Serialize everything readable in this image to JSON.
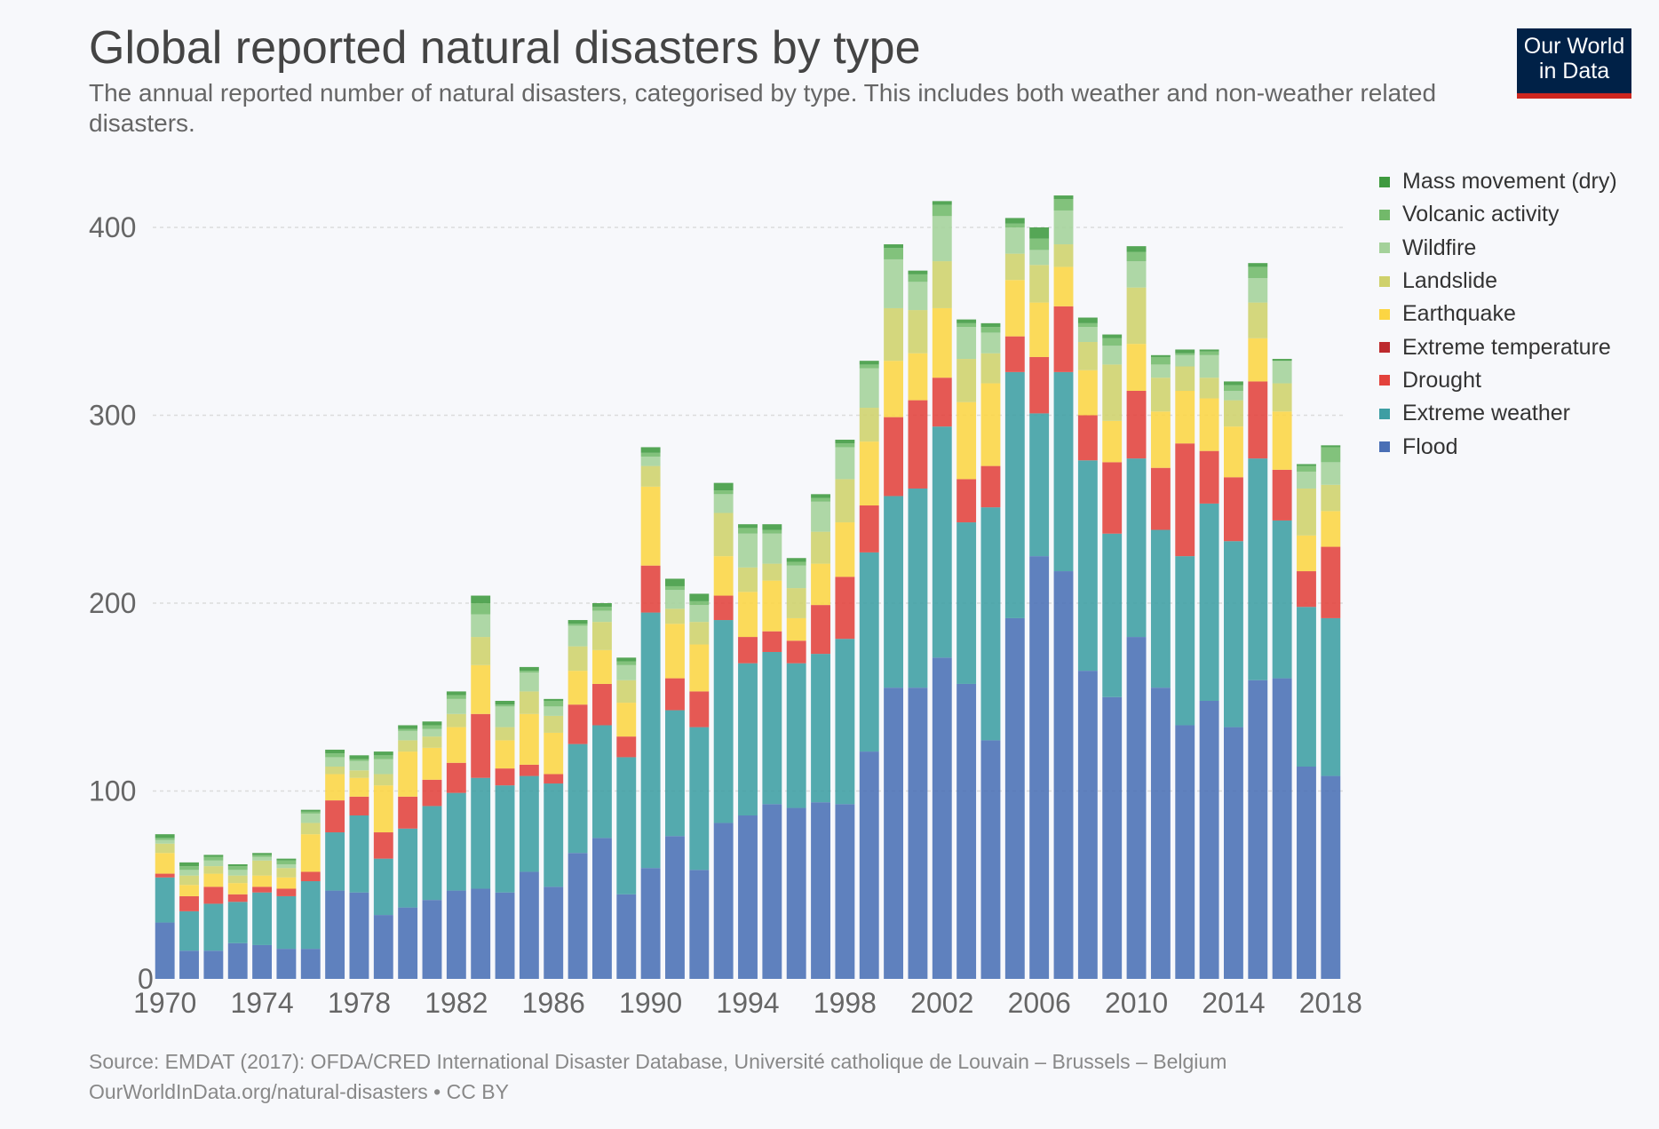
{
  "header": {
    "title": "Global reported natural disasters by type",
    "subtitle": "The annual reported number of natural disasters, categorised by type. This includes both weather and non-weather related disasters."
  },
  "logo": {
    "line1": "Our World",
    "line2": "in Data"
  },
  "footer": {
    "source": "Source: EMDAT (2017): OFDA/CRED International Disaster Database, Université catholique de Louvain – Brussels – Belgium",
    "license": "OurWorldInData.org/natural-disasters • CC BY"
  },
  "chart_data": {
    "type": "bar",
    "stacked": true,
    "x": [
      1970,
      1971,
      1972,
      1973,
      1974,
      1975,
      1976,
      1977,
      1978,
      1979,
      1980,
      1981,
      1982,
      1983,
      1984,
      1985,
      1986,
      1987,
      1988,
      1989,
      1990,
      1991,
      1992,
      1993,
      1994,
      1995,
      1996,
      1997,
      1998,
      1999,
      2000,
      2001,
      2002,
      2003,
      2004,
      2005,
      2006,
      2007,
      2008,
      2009,
      2010,
      2011,
      2012,
      2013,
      2014,
      2015,
      2016,
      2017,
      2018
    ],
    "x_ticks": [
      "1970",
      "1974",
      "1978",
      "1982",
      "1986",
      "1990",
      "1994",
      "1998",
      "2002",
      "2006",
      "2010",
      "2014",
      "2018"
    ],
    "y_ticks": [
      "0",
      "100",
      "200",
      "300",
      "400"
    ],
    "ylim": [
      0,
      430
    ],
    "grid": "horizontal dashed",
    "legend_position": "right",
    "series": [
      {
        "name": "Flood",
        "color": "#4a6fb5",
        "values": [
          30,
          15,
          15,
          19,
          18,
          16,
          16,
          47,
          46,
          34,
          38,
          42,
          47,
          48,
          46,
          57,
          49,
          67,
          75,
          45,
          59,
          76,
          58,
          83,
          87,
          93,
          91,
          94,
          93,
          121,
          155,
          155,
          171,
          157,
          127,
          192,
          225,
          217,
          164,
          150,
          182,
          155,
          135,
          148,
          134,
          159,
          160,
          113,
          108
        ]
      },
      {
        "name": "Extreme weather",
        "color": "#3d9ea3",
        "values": [
          24,
          21,
          25,
          22,
          28,
          28,
          36,
          31,
          41,
          30,
          42,
          50,
          52,
          59,
          57,
          51,
          55,
          58,
          60,
          73,
          136,
          67,
          76,
          108,
          81,
          81,
          77,
          79,
          88,
          106,
          102,
          106,
          123,
          86,
          124,
          131,
          76,
          106,
          112,
          87,
          95,
          84,
          90,
          105,
          99,
          118,
          84,
          85,
          84
        ]
      },
      {
        "name": "Drought",
        "color": "#e3423c",
        "values": [
          2,
          8,
          9,
          4,
          3,
          4,
          5,
          17,
          10,
          14,
          17,
          14,
          16,
          34,
          9,
          6,
          5,
          21,
          22,
          11,
          25,
          17,
          19,
          13,
          14,
          11,
          12,
          26,
          33,
          25,
          42,
          47,
          26,
          23,
          22,
          19,
          30,
          35,
          24,
          38,
          36,
          33,
          60,
          28,
          34,
          41,
          27,
          19,
          38
        ]
      },
      {
        "name": "Extreme temperature",
        "color": "#bd2a2e",
        "values": [
          0,
          0,
          0,
          0,
          0,
          0,
          0,
          0,
          0,
          0,
          0,
          0,
          0,
          0,
          0,
          0,
          0,
          0,
          0,
          0,
          0,
          0,
          0,
          0,
          0,
          0,
          0,
          0,
          0,
          0,
          0,
          0,
          0,
          0,
          0,
          0,
          0,
          0,
          0,
          0,
          0,
          0,
          0,
          0,
          0,
          0,
          0,
          0,
          0
        ]
      },
      {
        "name": "Earthquake",
        "color": "#fcd543",
        "values": [
          11,
          6,
          7,
          6,
          6,
          6,
          20,
          14,
          10,
          25,
          24,
          17,
          19,
          26,
          15,
          27,
          22,
          18,
          18,
          18,
          42,
          29,
          25,
          21,
          24,
          27,
          12,
          22,
          29,
          34,
          30,
          25,
          37,
          41,
          44,
          30,
          29,
          21,
          24,
          22,
          25,
          30,
          28,
          28,
          27,
          23,
          31,
          19,
          19
        ]
      },
      {
        "name": "Landslide",
        "color": "#cfd16b",
        "values": [
          5,
          5,
          4,
          4,
          8,
          5,
          6,
          4,
          4,
          6,
          6,
          6,
          7,
          15,
          7,
          12,
          9,
          13,
          15,
          12,
          11,
          8,
          12,
          23,
          13,
          9,
          16,
          17,
          23,
          18,
          28,
          23,
          25,
          23,
          16,
          14,
          20,
          12,
          15,
          30,
          30,
          18,
          13,
          11,
          14,
          19,
          15,
          25,
          14
        ]
      },
      {
        "name": "Wildfire",
        "color": "#a4d19a",
        "values": [
          2,
          3,
          3,
          3,
          2,
          2,
          5,
          5,
          5,
          8,
          5,
          4,
          8,
          12,
          11,
          10,
          5,
          11,
          6,
          8,
          5,
          10,
          9,
          10,
          18,
          16,
          12,
          16,
          17,
          21,
          26,
          15,
          24,
          17,
          11,
          14,
          8,
          18,
          8,
          10,
          14,
          7,
          6,
          12,
          5,
          13,
          12,
          9,
          12
        ]
      },
      {
        "name": "Volcanic activity",
        "color": "#72b96a",
        "values": [
          1,
          2,
          2,
          2,
          1,
          2,
          1,
          2,
          1,
          2,
          1,
          2,
          2,
          6,
          1,
          1,
          3,
          1,
          2,
          2,
          2,
          2,
          2,
          2,
          3,
          2,
          2,
          2,
          2,
          2,
          6,
          4,
          6,
          2,
          3,
          2,
          6,
          6,
          2,
          4,
          5,
          4,
          1,
          2,
          3,
          6,
          0,
          3,
          8
        ]
      },
      {
        "name": "Mass movement (dry)",
        "color": "#3f9a3f",
        "values": [
          2,
          2,
          1,
          1,
          1,
          1,
          1,
          2,
          2,
          2,
          2,
          2,
          2,
          4,
          2,
          2,
          1,
          2,
          2,
          2,
          3,
          4,
          4,
          4,
          2,
          3,
          2,
          2,
          2,
          2,
          2,
          2,
          2,
          2,
          2,
          3,
          6,
          2,
          3,
          2,
          3,
          1,
          2,
          1,
          2,
          2,
          1,
          1,
          1
        ]
      }
    ]
  }
}
